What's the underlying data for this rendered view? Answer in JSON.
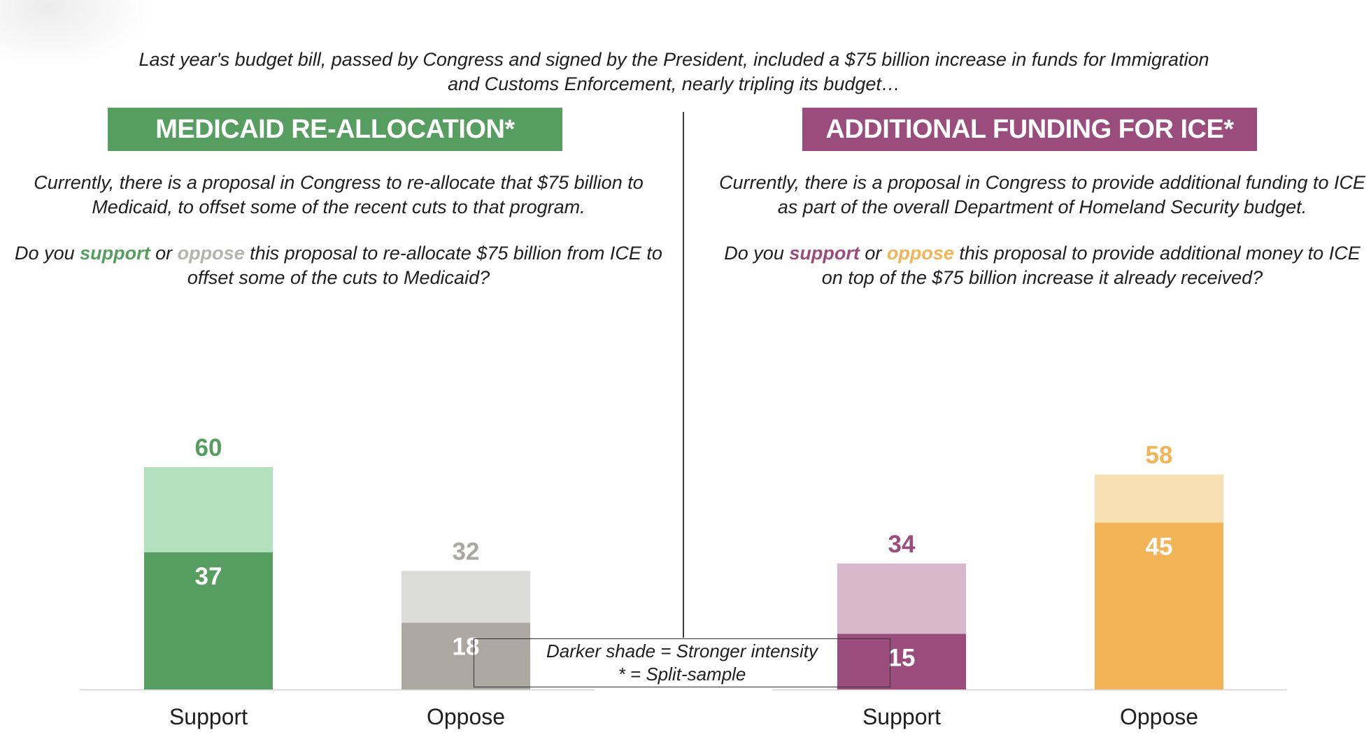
{
  "intro": "Last year's budget bill, passed by Congress and signed by the President, included a $75 billion increase in funds for Immigration and Customs Enforcement, nearly tripling its budget…",
  "panels": [
    {
      "banner": "MEDICAID RE-ALLOCATION*",
      "banner_color": "#559e5f",
      "description": "Currently, there is a proposal in Congress to re-allocate that $75 billion to Medicaid, to offset some of the recent cuts to that program.",
      "question": {
        "before": "Do you ",
        "support": "support",
        "mid": " or ",
        "oppose": "oppose",
        "after": " this proposal to re-allocate $75 billion from ICE to offset some of the cuts to Medicaid?",
        "support_color": "#559e5f",
        "oppose_color": "#b5b3ae"
      }
    },
    {
      "banner": "ADDITIONAL FUNDING FOR ICE*",
      "banner_color": "#9a4d7c",
      "description": "Currently, there is a proposal in Congress to provide additional funding to ICE as part of the overall Department of Homeland Security budget.",
      "question": {
        "before": "Do you ",
        "support": "support",
        "mid": " or ",
        "oppose": "oppose",
        "after": " this proposal to provide additional money to ICE on top of the $75 billion increase it already received?",
        "support_color": "#9a4d7c",
        "oppose_color": "#f2b457"
      }
    }
  ],
  "legend": {
    "line1": "Darker shade = Stronger intensity",
    "line2": "* = Split-sample"
  },
  "chart_data": [
    {
      "type": "bar",
      "stacked": true,
      "categories": [
        "Support",
        "Oppose"
      ],
      "totals": [
        60,
        32
      ],
      "strong": [
        37,
        18
      ],
      "colors": {
        "strong": [
          "#559e5f",
          "#aba8a1"
        ],
        "light": [
          "#b3e0bf",
          "#dcdcdb"
        ],
        "total_label": [
          "#559e5f",
          "#aba8a1"
        ]
      },
      "ylim": [
        0,
        70
      ]
    },
    {
      "type": "bar",
      "stacked": true,
      "categories": [
        "Support",
        "Oppose"
      ],
      "totals": [
        34,
        58
      ],
      "strong": [
        15,
        45
      ],
      "colors": {
        "strong": [
          "#9a4d7c",
          "#f2b457"
        ],
        "light": [
          "#d8b8cb",
          "#f8deb3"
        ],
        "total_label": [
          "#9a4d7c",
          "#f2b457"
        ]
      },
      "ylim": [
        0,
        70
      ]
    }
  ]
}
